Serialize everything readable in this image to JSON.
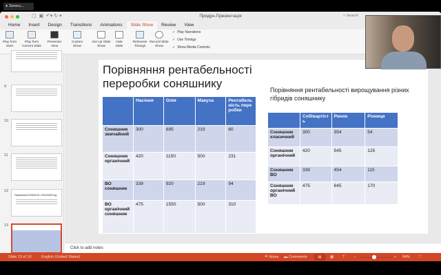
{
  "recording": {
    "label": "Запись..."
  },
  "window": {
    "title": "Прядун.Презентація",
    "search_placeholder": "Search"
  },
  "tabs": [
    "Home",
    "Insert",
    "Design",
    "Transitions",
    "Animations",
    "Slide Show",
    "Review",
    "View"
  ],
  "active_tab": "Slide Show",
  "ribbon": {
    "buttons": [
      {
        "label": "Play from Start",
        "icon": "play-start-icon"
      },
      {
        "label": "Play from Current Slide",
        "icon": "play-current-icon"
      },
      {
        "label": "Presenter View",
        "icon": "presenter-view-icon"
      },
      {
        "label": "Custom Show",
        "icon": "custom-show-icon"
      },
      {
        "label": "Set Up Slide Show",
        "icon": "setup-icon"
      },
      {
        "label": "Hide Slide",
        "icon": "hide-slide-icon"
      },
      {
        "label": "Rehearse Timings",
        "icon": "rehearse-icon"
      },
      {
        "label": "Record Slide Show",
        "icon": "record-icon"
      }
    ],
    "checkboxes": [
      {
        "label": "Play Narrations",
        "checked": true
      },
      {
        "label": "Use Timings",
        "checked": true
      },
      {
        "label": "Show Media Controls",
        "checked": true
      }
    ]
  },
  "thumbnails": {
    "numbers": [
      "9",
      "10",
      "11",
      "12",
      "13"
    ],
    "selected": "13",
    "slide12_title": "Порівняння 2018/2019 і 2019/2020 під"
  },
  "slide": {
    "title": "Порівняння рентабельності переробки соняшнику",
    "table1": {
      "headers": [
        "",
        "Насіння",
        "Олія",
        "Макуха",
        "Рентабельність переробки"
      ],
      "rows": [
        [
          "Соняшник звичайний",
          "300",
          "695",
          "219",
          "60"
        ],
        [
          "Соняшник органічний",
          "420",
          "1150",
          "500",
          "231"
        ],
        [
          "ВО соняшник",
          "339",
          "920",
          "219",
          "94"
        ],
        [
          "ВО органічний соняшник",
          "475",
          "1550",
          "500",
          "310"
        ]
      ]
    },
    "subtitle": "Порівняння рентабельності вирощування різних гібридів соняшнику",
    "table2": {
      "headers": [
        "",
        "Собівартість",
        "Ринок",
        "Різниця"
      ],
      "rows": [
        [
          "Соняшник класичний",
          "300",
          "354",
          "54"
        ],
        [
          "Соняшник органічний",
          "420",
          "545",
          "125"
        ],
        [
          "Соняшник ВО",
          "339",
          "454",
          "115"
        ],
        [
          "Соняшник органічний ВО",
          "475",
          "645",
          "170"
        ]
      ]
    }
  },
  "notes_placeholder": "Click to add notes",
  "status": {
    "slide": "Slide 13 of 16",
    "language": "English (United States)",
    "notes": "Notes",
    "comments": "Comments",
    "zoom": "94%",
    "zoom_level": 0.47
  },
  "colors": {
    "accent": "#d24726",
    "table_header": "#4472c4"
  }
}
